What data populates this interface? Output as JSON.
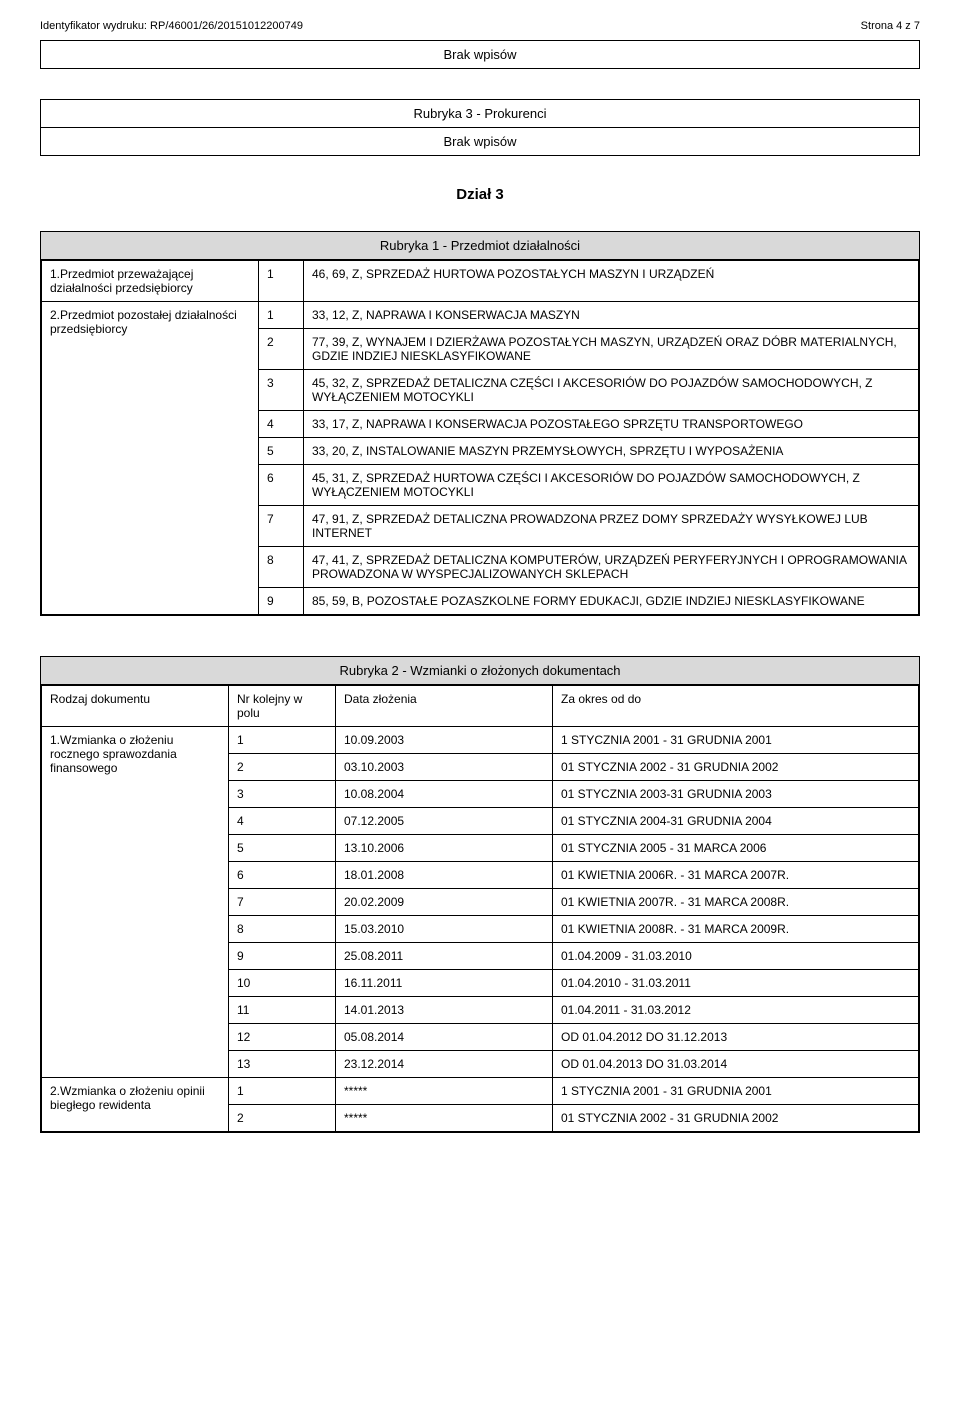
{
  "header": {
    "left": "Identyfikator wydruku: RP/46001/26/20151012200749",
    "right": "Strona 4 z 7"
  },
  "box1": {
    "line1": "Brak wpisów"
  },
  "box2": {
    "title": "Rubryka 3 - Prokurenci",
    "line": "Brak wpisów"
  },
  "dzial3": "Dział 3",
  "rubryka1": {
    "title": "Rubryka 1 - Przedmiot działalności",
    "row1_label": "1.Przedmiot przeważającej działalności przedsiębiorcy",
    "row1_items": [
      {
        "n": "1",
        "t": "46, 69, Z, SPRZEDAŻ HURTOWA POZOSTAŁYCH MASZYN I URZĄDZEŃ"
      }
    ],
    "row2_label": "2.Przedmiot pozostałej działalności przedsiębiorcy",
    "row2_items": [
      {
        "n": "1",
        "t": "33, 12, Z, NAPRAWA I KONSERWACJA MASZYN"
      },
      {
        "n": "2",
        "t": "77, 39, Z, WYNAJEM I DZIERŻAWA POZOSTAŁYCH MASZYN, URZĄDZEŃ ORAZ DÓBR MATERIALNYCH, GDZIE INDZIEJ NIESKLASYFIKOWANE"
      },
      {
        "n": "3",
        "t": "45, 32, Z, SPRZEDAŻ DETALICZNA CZĘŚCI I AKCESORIÓW DO POJAZDÓW SAMOCHODOWYCH, Z WYŁĄCZENIEM MOTOCYKLI"
      },
      {
        "n": "4",
        "t": "33, 17, Z, NAPRAWA I KONSERWACJA POZOSTAŁEGO SPRZĘTU TRANSPORTOWEGO"
      },
      {
        "n": "5",
        "t": "33, 20, Z, INSTALOWANIE MASZYN PRZEMYSŁOWYCH, SPRZĘTU I WYPOSAŻENIA"
      },
      {
        "n": "6",
        "t": "45, 31, Z, SPRZEDAŻ HURTOWA CZĘŚCI I AKCESORIÓW DO POJAZDÓW SAMOCHODOWYCH, Z WYŁĄCZENIEM MOTOCYKLI"
      },
      {
        "n": "7",
        "t": "47, 91, Z, SPRZEDAŻ DETALICZNA PROWADZONA PRZEZ DOMY SPRZEDAŻY WYSYŁKOWEJ LUB INTERNET"
      },
      {
        "n": "8",
        "t": "47, 41, Z, SPRZEDAŻ DETALICZNA KOMPUTERÓW, URZĄDZEŃ PERYFERYJNYCH I OPROGRAMOWANIA PROWADZONA W WYSPECJALIZOWANYCH SKLEPACH"
      },
      {
        "n": "9",
        "t": "85, 59, B, POZOSTAŁE POZASZKOLNE FORMY EDUKACJI, GDZIE INDZIEJ NIESKLASYFIKOWANE"
      }
    ]
  },
  "rubryka2": {
    "title": "Rubryka 2 - Wzmianki o złożonych dokumentach",
    "head": {
      "c1": "Rodzaj dokumentu",
      "c2": "Nr kolejny w polu",
      "c3": "Data złożenia",
      "c4": "Za okres od do"
    },
    "group1_label": "1.Wzmianka o złożeniu rocznego sprawozdania finansowego",
    "group1_rows": [
      {
        "n": "1",
        "d": "10.09.2003",
        "p": "1 STYCZNIA 2001 - 31 GRUDNIA 2001"
      },
      {
        "n": "2",
        "d": "03.10.2003",
        "p": "01 STYCZNIA 2002 - 31 GRUDNIA 2002"
      },
      {
        "n": "3",
        "d": "10.08.2004",
        "p": "01 STYCZNIA 2003-31 GRUDNIA 2003"
      },
      {
        "n": "4",
        "d": "07.12.2005",
        "p": "01 STYCZNIA 2004-31 GRUDNIA 2004"
      },
      {
        "n": "5",
        "d": "13.10.2006",
        "p": "01 STYCZNIA  2005 - 31 MARCA 2006"
      },
      {
        "n": "6",
        "d": "18.01.2008",
        "p": "01 KWIETNIA 2006R. - 31 MARCA 2007R."
      },
      {
        "n": "7",
        "d": "20.02.2009",
        "p": "01 KWIETNIA 2007R. - 31 MARCA 2008R."
      },
      {
        "n": "8",
        "d": "15.03.2010",
        "p": "01 KWIETNIA 2008R. - 31 MARCA 2009R."
      },
      {
        "n": "9",
        "d": "25.08.2011",
        "p": "01.04.2009 - 31.03.2010"
      },
      {
        "n": "10",
        "d": "16.11.2011",
        "p": "01.04.2010 - 31.03.2011"
      },
      {
        "n": "11",
        "d": "14.01.2013",
        "p": "01.04.2011 - 31.03.2012"
      },
      {
        "n": "12",
        "d": "05.08.2014",
        "p": "OD 01.04.2012 DO 31.12.2013"
      },
      {
        "n": "13",
        "d": "23.12.2014",
        "p": "OD 01.04.2013 DO 31.03.2014"
      }
    ],
    "group2_label": "2.Wzmianka o złożeniu opinii biegłego rewidenta",
    "group2_rows": [
      {
        "n": "1",
        "d": "*****",
        "p": "1 STYCZNIA 2001 - 31 GRUDNIA 2001"
      },
      {
        "n": "2",
        "d": "*****",
        "p": "01 STYCZNIA 2002 - 31 GRUDNIA 2002"
      }
    ]
  }
}
